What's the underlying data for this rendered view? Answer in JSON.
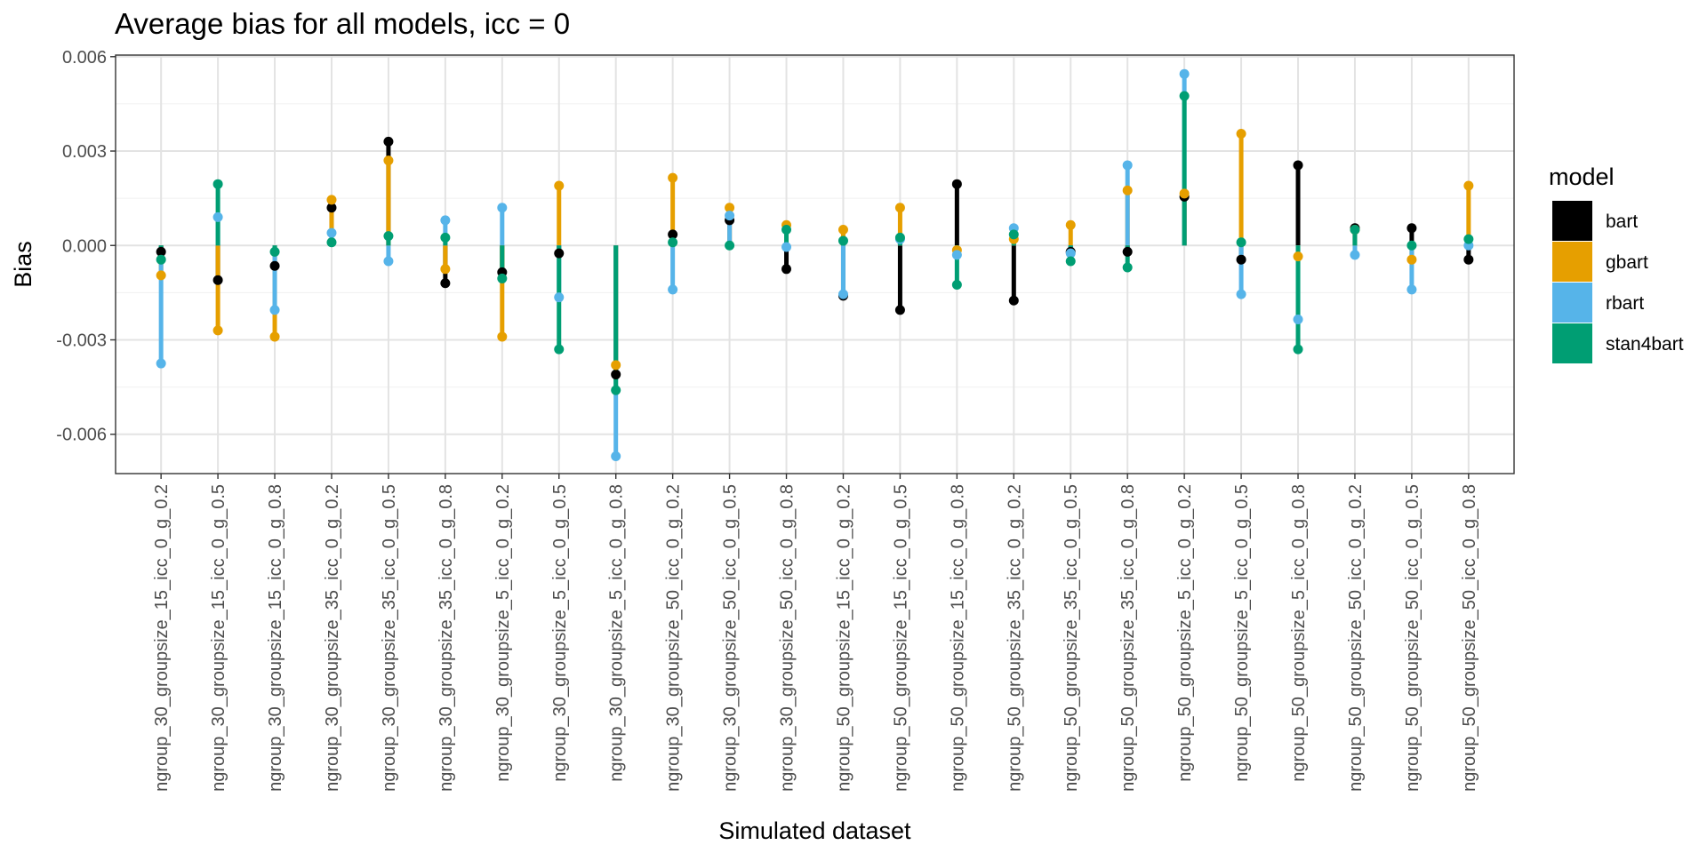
{
  "chart_data": {
    "type": "dot-range",
    "title": "Average bias for all models, icc = 0",
    "xlabel": "Simulated dataset",
    "ylabel": "Bias",
    "ylim": [
      -0.00725,
      0.00605
    ],
    "yticks": [
      -0.006,
      -0.003,
      0.0,
      0.003,
      0.006
    ],
    "ytick_labels": [
      "-0.006",
      "-0.003",
      "0.000",
      "0.003",
      "0.006"
    ],
    "grid": true,
    "legend": {
      "title": "model",
      "position": "right"
    },
    "categories": [
      "ngroup_30_groupsize_15_icc_0_g_0.2",
      "ngroup_30_groupsize_15_icc_0_g_0.5",
      "ngroup_30_groupsize_15_icc_0_g_0.8",
      "ngroup_30_groupsize_35_icc_0_g_0.2",
      "ngroup_30_groupsize_35_icc_0_g_0.5",
      "ngroup_30_groupsize_35_icc_0_g_0.8",
      "ngroup_30_groupsize_5_icc_0_g_0.2",
      "ngroup_30_groupsize_5_icc_0_g_0.5",
      "ngroup_30_groupsize_5_icc_0_g_0.8",
      "ngroup_30_groupsize_50_icc_0_g_0.2",
      "ngroup_30_groupsize_50_icc_0_g_0.5",
      "ngroup_30_groupsize_50_icc_0_g_0.8",
      "ngroup_50_groupsize_15_icc_0_g_0.2",
      "ngroup_50_groupsize_15_icc_0_g_0.5",
      "ngroup_50_groupsize_15_icc_0_g_0.8",
      "ngroup_50_groupsize_35_icc_0_g_0.2",
      "ngroup_50_groupsize_35_icc_0_g_0.5",
      "ngroup_50_groupsize_35_icc_0_g_0.8",
      "ngroup_50_groupsize_5_icc_0_g_0.2",
      "ngroup_50_groupsize_5_icc_0_g_0.5",
      "ngroup_50_groupsize_5_icc_0_g_0.8",
      "ngroup_50_groupsize_50_icc_0_g_0.2",
      "ngroup_50_groupsize_50_icc_0_g_0.5",
      "ngroup_50_groupsize_50_icc_0_g_0.8"
    ],
    "series": [
      {
        "name": "bart",
        "color": "#000000",
        "values": [
          -0.0002,
          -0.0011,
          -0.00065,
          0.0012,
          0.0033,
          -0.0012,
          -0.00085,
          -0.00025,
          -0.0041,
          0.00035,
          0.0008,
          -0.00075,
          -0.0016,
          -0.00205,
          0.00195,
          -0.00175,
          -0.0002,
          -0.0002,
          0.00155,
          -0.00045,
          0.00255,
          0.00055,
          0.00055,
          -0.00045
        ]
      },
      {
        "name": "gbart",
        "color": "#E69F00",
        "values": [
          -0.00095,
          -0.0027,
          -0.0029,
          0.00145,
          0.0027,
          -0.00075,
          -0.0029,
          0.0019,
          -0.0038,
          0.00215,
          0.0012,
          0.00065,
          0.0005,
          0.0012,
          -0.00015,
          0.0002,
          0.00065,
          0.00175,
          0.00165,
          0.00355,
          -0.00035,
          0.0005,
          -0.00045,
          0.0019
        ]
      },
      {
        "name": "rbart",
        "color": "#56B4E9",
        "values": [
          -0.00375,
          0.0009,
          -0.00205,
          0.0004,
          -0.0005,
          0.0008,
          0.0012,
          -0.00165,
          -0.0067,
          -0.0014,
          0.00095,
          -5e-05,
          -0.00155,
          0.0002,
          -0.0003,
          0.00055,
          -0.00025,
          0.00255,
          0.00545,
          -0.00155,
          -0.00235,
          -0.0003,
          -0.0014,
          0.0
        ]
      },
      {
        "name": "stan4bart",
        "color": "#009E73",
        "values": [
          -0.00045,
          0.00195,
          -0.0002,
          0.0001,
          0.0003,
          0.00025,
          -0.00105,
          -0.0033,
          -0.0046,
          0.0001,
          0.0,
          0.0005,
          0.00015,
          0.00025,
          -0.00125,
          0.00035,
          -0.0005,
          -0.0007,
          0.00475,
          0.0001,
          -0.0033,
          0.0005,
          0.0,
          0.0002
        ]
      }
    ]
  }
}
